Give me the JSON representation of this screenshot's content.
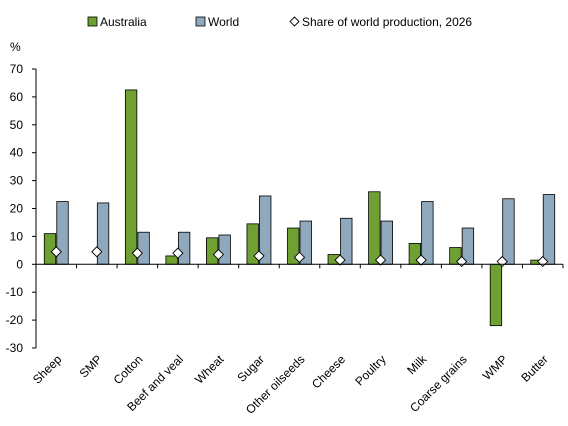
{
  "chart_data": {
    "type": "bar",
    "ylabel": "%",
    "ylim": [
      -30,
      70
    ],
    "yticks": [
      -30,
      -20,
      -10,
      0,
      10,
      20,
      30,
      40,
      50,
      60,
      70
    ],
    "grid": false,
    "legend_position": "top",
    "categories": [
      "Sheep",
      "SMP",
      "Cotton",
      "Beef and veal",
      "Wheat",
      "Sugar",
      "Other oilseeds",
      "Cheese",
      "Poultry",
      "Milk",
      "Coarse grains",
      "WMP",
      "Butter"
    ],
    "series": [
      {
        "name": "Australia",
        "type": "bar",
        "color": "#6fa032",
        "values": [
          11,
          0,
          62.5,
          3,
          9.5,
          14.5,
          13,
          3.5,
          26,
          7.5,
          6,
          -22,
          1.5
        ]
      },
      {
        "name": "World",
        "type": "bar",
        "color": "#8fa8bc",
        "values": [
          22.5,
          22,
          11.5,
          11.5,
          10.5,
          24.5,
          15.5,
          16.5,
          15.5,
          22.5,
          13,
          23.5,
          25
        ]
      },
      {
        "name": "Share of world production, 2026",
        "type": "marker",
        "marker": "diamond",
        "color": "#ffffff",
        "values": [
          4.5,
          4.5,
          4,
          4,
          3.5,
          3,
          2.5,
          1.5,
          1.5,
          1.5,
          1,
          1,
          1
        ]
      }
    ]
  }
}
